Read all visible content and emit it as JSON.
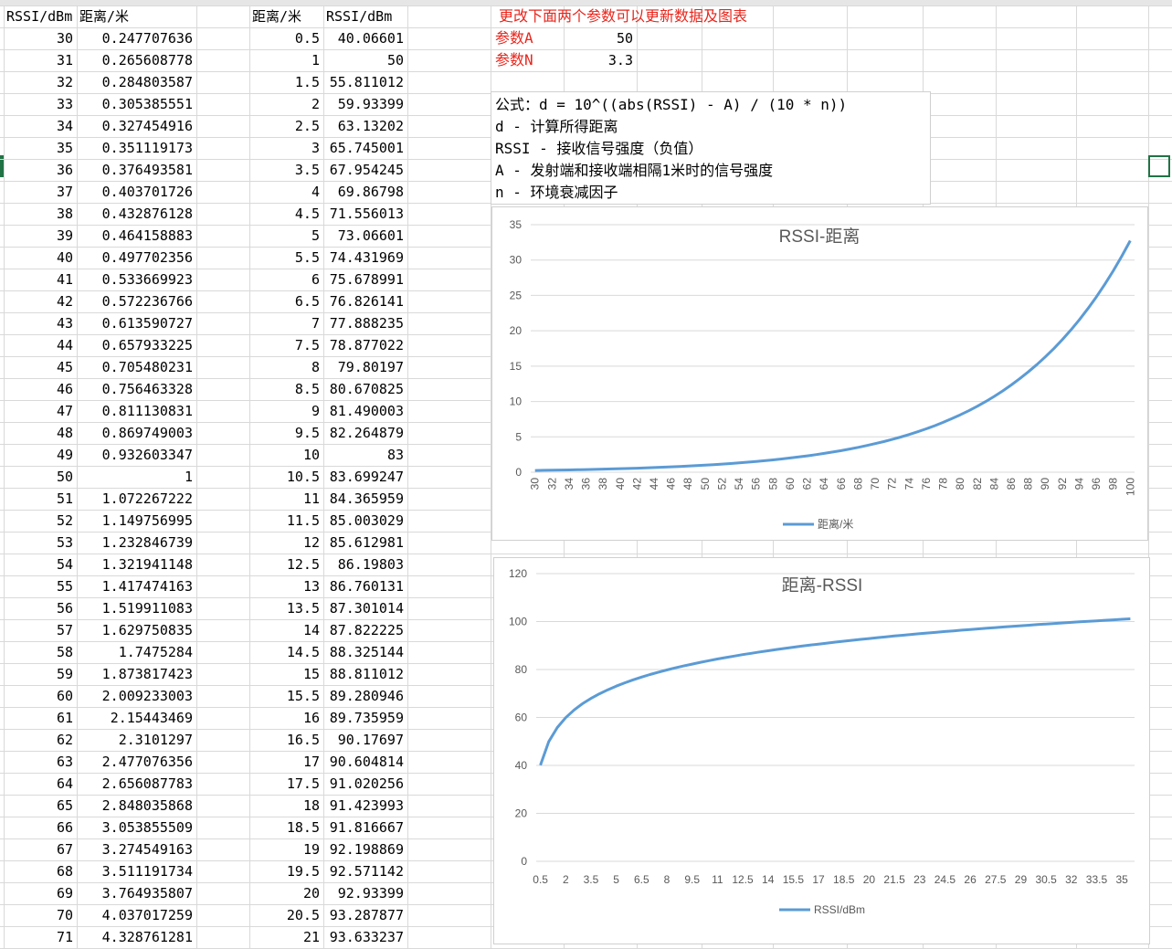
{
  "sheet": {
    "headers": {
      "a": "RSSI/dBm",
      "b": "距离/米",
      "d": "距离/米",
      "e": "RSSI/dBm"
    },
    "col_a": [
      "30",
      "31",
      "32",
      "33",
      "34",
      "35",
      "36",
      "37",
      "38",
      "39",
      "40",
      "41",
      "42",
      "43",
      "44",
      "45",
      "46",
      "47",
      "48",
      "49",
      "50",
      "51",
      "52",
      "53",
      "54",
      "55",
      "56",
      "57",
      "58",
      "59",
      "60",
      "61",
      "62",
      "63",
      "64",
      "65",
      "66",
      "67",
      "68",
      "69",
      "70",
      "71"
    ],
    "col_b": [
      "0.247707636",
      "0.265608778",
      "0.284803587",
      "0.305385551",
      "0.327454916",
      "0.351119173",
      "0.376493581",
      "0.403701726",
      "0.432876128",
      "0.464158883",
      "0.497702356",
      "0.533669923",
      "0.572236766",
      "0.613590727",
      "0.657933225",
      "0.705480231",
      "0.756463328",
      "0.811130831",
      "0.869749003",
      "0.932603347",
      "1",
      "1.072267222",
      "1.149756995",
      "1.232846739",
      "1.321941148",
      "1.417474163",
      "1.519911083",
      "1.629750835",
      "1.7475284",
      "1.873817423",
      "2.009233003",
      "2.15443469",
      "2.3101297",
      "2.477076356",
      "2.656087783",
      "2.848035868",
      "3.053855509",
      "3.274549163",
      "3.511191734",
      "3.764935807",
      "4.037017259",
      "4.328761281"
    ],
    "col_d": [
      "0.5",
      "1",
      "1.5",
      "2",
      "2.5",
      "3",
      "3.5",
      "4",
      "4.5",
      "5",
      "5.5",
      "6",
      "6.5",
      "7",
      "7.5",
      "8",
      "8.5",
      "9",
      "9.5",
      "10",
      "10.5",
      "11",
      "11.5",
      "12",
      "12.5",
      "13",
      "13.5",
      "14",
      "14.5",
      "15",
      "15.5",
      "16",
      "16.5",
      "17",
      "17.5",
      "18",
      "18.5",
      "19",
      "19.5",
      "20",
      "20.5",
      "21"
    ],
    "col_e": [
      "40.06601",
      "50",
      "55.811012",
      "59.93399",
      "63.13202",
      "65.745001",
      "67.954245",
      "69.86798",
      "71.556013",
      "73.06601",
      "74.431969",
      "75.678991",
      "76.826141",
      "77.888235",
      "78.877022",
      "79.80197",
      "80.670825",
      "81.490003",
      "82.264879",
      "83",
      "83.699247",
      "84.365959",
      "85.003029",
      "85.612981",
      "86.19803",
      "86.760131",
      "87.301014",
      "87.822225",
      "88.325144",
      "88.811012",
      "89.280946",
      "89.735959",
      "90.17697",
      "90.604814",
      "91.020256",
      "91.423993",
      "91.816667",
      "92.198869",
      "92.571142",
      "92.93399",
      "93.287877",
      "93.633237"
    ]
  },
  "params": {
    "note": "更改下面两个参数可以更新数据及图表",
    "a_label": "参数A",
    "a_value": "50",
    "n_label": "参数N",
    "n_value": "3.3"
  },
  "formula": {
    "line1": "公式：d = 10^((abs(RSSI) - A) / (10 * n))",
    "line2": "d - 计算所得距离",
    "line3": "RSSI - 接收信号强度（负值）",
    "line4": "A - 发射端和接收端相隔1米时的信号强度",
    "line5": "n - 环境衰减因子"
  },
  "colors": {
    "series": "#5b9bd5",
    "red_text": "#e8261c",
    "grid": "#d9d9d9"
  },
  "chart_data": [
    {
      "type": "line",
      "title": "RSSI-距离",
      "legend": "距离/米",
      "legend_position": "bottom",
      "grid": true,
      "ylim": [
        0,
        35
      ],
      "yticks": [
        "0",
        "5",
        "10",
        "15",
        "20",
        "25",
        "30",
        "35"
      ],
      "xticks": [
        "30",
        "32",
        "34",
        "36",
        "38",
        "40",
        "42",
        "44",
        "46",
        "48",
        "50",
        "52",
        "54",
        "56",
        "58",
        "60",
        "62",
        "64",
        "66",
        "68",
        "70",
        "72",
        "74",
        "76",
        "78",
        "80",
        "82",
        "84",
        "86",
        "88",
        "90",
        "92",
        "94",
        "96",
        "98",
        "100"
      ],
      "x": [
        30,
        31,
        32,
        33,
        34,
        35,
        36,
        37,
        38,
        39,
        40,
        41,
        42,
        43,
        44,
        45,
        46,
        47,
        48,
        49,
        50,
        51,
        52,
        53,
        54,
        55,
        56,
        57,
        58,
        59,
        60,
        61,
        62,
        63,
        64,
        65,
        66,
        67,
        68,
        69,
        70,
        71,
        72,
        73,
        74,
        75,
        76,
        77,
        78,
        79,
        80,
        81,
        82,
        83,
        84,
        85,
        86,
        87,
        88,
        89,
        90,
        91,
        92,
        93,
        94,
        95,
        96,
        97,
        98,
        99,
        100
      ],
      "values": [
        0.248,
        0.266,
        0.285,
        0.305,
        0.327,
        0.351,
        0.376,
        0.404,
        0.433,
        0.464,
        0.498,
        0.534,
        0.572,
        0.614,
        0.658,
        0.705,
        0.756,
        0.811,
        0.87,
        0.933,
        1.0,
        1.072,
        1.15,
        1.233,
        1.322,
        1.417,
        1.52,
        1.63,
        1.748,
        1.874,
        2.009,
        2.154,
        2.31,
        2.477,
        2.656,
        2.848,
        3.054,
        3.275,
        3.511,
        3.765,
        4.037,
        4.329,
        4.642,
        4.977,
        5.337,
        5.722,
        6.136,
        6.579,
        7.054,
        7.564,
        8.111,
        8.697,
        9.326,
        10.0,
        10.723,
        11.498,
        12.328,
        13.219,
        14.175,
        15.199,
        16.298,
        17.475,
        18.738,
        20.092,
        21.544,
        23.101,
        24.771,
        26.561,
        28.48,
        30.539,
        32.745
      ]
    },
    {
      "type": "line",
      "title": "距离-RSSI",
      "legend": "RSSI/dBm",
      "legend_position": "bottom",
      "grid": true,
      "ylim": [
        0,
        120
      ],
      "yticks": [
        "0",
        "20",
        "40",
        "60",
        "80",
        "100",
        "120"
      ],
      "xticks": [
        "0.5",
        "2",
        "3.5",
        "5",
        "6.5",
        "8",
        "9.5",
        "11",
        "12.5",
        "14",
        "15.5",
        "17",
        "18.5",
        "20",
        "21.5",
        "23",
        "24.5",
        "26",
        "27.5",
        "29",
        "30.5",
        "32",
        "33.5",
        "35"
      ],
      "x": [
        0.5,
        1,
        1.5,
        2,
        2.5,
        3,
        3.5,
        4,
        4.5,
        5,
        5.5,
        6,
        6.5,
        7,
        7.5,
        8,
        8.5,
        9,
        9.5,
        10,
        10.5,
        11,
        11.5,
        12,
        12.5,
        13,
        13.5,
        14,
        14.5,
        15,
        15.5,
        16,
        16.5,
        17,
        17.5,
        18,
        18.5,
        19,
        19.5,
        20,
        20.5,
        21,
        21.5,
        22,
        22.5,
        23,
        23.5,
        24,
        24.5,
        25,
        25.5,
        26,
        26.5,
        27,
        27.5,
        28,
        28.5,
        29,
        29.5,
        30,
        30.5,
        31,
        31.5,
        32,
        32.5,
        33,
        33.5,
        34,
        34.5,
        35,
        35.5
      ],
      "values": [
        40.07,
        50.0,
        55.81,
        59.93,
        63.13,
        65.75,
        67.95,
        69.87,
        71.56,
        73.07,
        74.43,
        75.68,
        76.83,
        77.89,
        78.88,
        79.8,
        80.67,
        81.49,
        82.26,
        83.0,
        83.7,
        84.37,
        85.0,
        85.61,
        86.2,
        86.76,
        87.3,
        87.82,
        88.33,
        88.81,
        89.28,
        89.74,
        90.18,
        90.6,
        91.02,
        91.42,
        91.82,
        92.2,
        92.57,
        92.93,
        93.29,
        93.63,
        93.97,
        94.3,
        94.62,
        94.94,
        95.24,
        95.55,
        95.84,
        96.13,
        96.41,
        96.69,
        96.96,
        97.23,
        97.49,
        97.75,
        98.0,
        98.25,
        98.49,
        98.74,
        98.97,
        99.21,
        99.43,
        99.66,
        99.88,
        100.1,
        100.31,
        100.53,
        100.73,
        100.94,
        101.14
      ]
    }
  ]
}
